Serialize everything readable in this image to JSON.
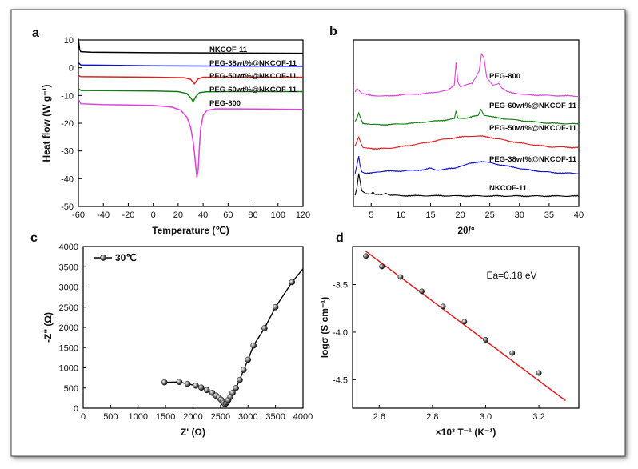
{
  "chart_data": [
    {
      "panel": "a",
      "type": "line",
      "xlabel": "Temperature (℃)",
      "ylabel": "Heat flow (W g⁻¹)",
      "xlim": [
        -60,
        120
      ],
      "ylim": [
        -50,
        10
      ],
      "xticks": [
        -60,
        -40,
        -20,
        0,
        20,
        40,
        60,
        80,
        100,
        120
      ],
      "yticks": [
        10,
        0,
        -10,
        -20,
        -30,
        -40,
        -50
      ],
      "series": [
        {
          "name": "NKCOF-11",
          "color": "#000000",
          "points": [
            [
              -60,
              10.5
            ],
            [
              -59,
              6.5
            ],
            [
              -58,
              5.8
            ],
            [
              -50,
              5.6
            ],
            [
              0,
              5.4
            ],
            [
              60,
              5.3
            ],
            [
              120,
              5.2
            ]
          ]
        },
        {
          "name": "PEG-38wt%@NKCOF-11",
          "color": "#1010d0",
          "points": [
            [
              -60,
              1.8
            ],
            [
              -58,
              1.0
            ],
            [
              0,
              0.7
            ],
            [
              60,
              0.6
            ],
            [
              120,
              0.5
            ]
          ]
        },
        {
          "name": "PEG-50wt%@NKCOF-11",
          "color": "#e02020",
          "points": [
            [
              -60,
              -2.8
            ],
            [
              -58,
              -3.2
            ],
            [
              0,
              -3.4
            ],
            [
              25,
              -3.6
            ],
            [
              30,
              -4.2
            ],
            [
              33,
              -5.8
            ],
            [
              36,
              -4.0
            ],
            [
              40,
              -3.4
            ],
            [
              60,
              -3.4
            ],
            [
              120,
              -3.4
            ]
          ]
        },
        {
          "name": "PEG-60wt%@NKCOF-11",
          "color": "#108010",
          "points": [
            [
              -60,
              -7.5
            ],
            [
              -58,
              -8.2
            ],
            [
              0,
              -8.4
            ],
            [
              20,
              -8.6
            ],
            [
              27,
              -9.3
            ],
            [
              30,
              -10.8
            ],
            [
              32,
              -12.2
            ],
            [
              34,
              -10.5
            ],
            [
              37,
              -9.0
            ],
            [
              42,
              -8.7
            ],
            [
              60,
              -8.6
            ],
            [
              120,
              -8.6
            ]
          ]
        },
        {
          "name": "PEG-800",
          "color": "#e040e0",
          "points": [
            [
              -60,
              -11.5
            ],
            [
              -58,
              -13.0
            ],
            [
              -40,
              -13.3
            ],
            [
              0,
              -13.6
            ],
            [
              15,
              -14.2
            ],
            [
              22,
              -15.3
            ],
            [
              27,
              -17.8
            ],
            [
              30,
              -21.5
            ],
            [
              32,
              -26.5
            ],
            [
              33,
              -30.5
            ],
            [
              34,
              -35.0
            ],
            [
              35,
              -39.5
            ],
            [
              36,
              -37.0
            ],
            [
              37,
              -29.0
            ],
            [
              38,
              -22.0
            ],
            [
              40,
              -17.2
            ],
            [
              43,
              -15.4
            ],
            [
              50,
              -14.8
            ],
            [
              80,
              -14.9
            ],
            [
              120,
              -15.0
            ]
          ]
        }
      ]
    },
    {
      "panel": "b",
      "type": "line",
      "xlabel": "2θ/°",
      "ylabel": "",
      "xlim": [
        2,
        40
      ],
      "xticks": [
        5,
        10,
        15,
        20,
        25,
        30,
        35,
        40
      ],
      "series": [
        {
          "name": "NKCOF-11",
          "color": "#000000",
          "offset": 0,
          "points": [
            [
              2.3,
              0.2
            ],
            [
              2.6,
              2.5
            ],
            [
              2.9,
              6.5
            ],
            [
              3.1,
              4.5
            ],
            [
              3.4,
              1.5
            ],
            [
              4,
              0.8
            ],
            [
              5,
              0.6
            ],
            [
              5.3,
              1.2
            ],
            [
              5.6,
              0.5
            ],
            [
              6,
              0.4
            ],
            [
              7,
              0.5
            ],
            [
              7.5,
              0.8
            ],
            [
              8,
              0.3
            ],
            [
              10,
              0.1
            ],
            [
              15,
              0.1
            ],
            [
              20,
              0.05
            ],
            [
              30,
              0
            ],
            [
              40,
              0
            ]
          ]
        },
        {
          "name": "PEG-38wt%@NKCOF-11",
          "color": "#1010d0",
          "offset": 6,
          "points": [
            [
              2.3,
              0.5
            ],
            [
              2.6,
              3.0
            ],
            [
              2.9,
              5.5
            ],
            [
              3.1,
              3.0
            ],
            [
              3.4,
              1.0
            ],
            [
              4,
              0.5
            ],
            [
              5,
              0.6
            ],
            [
              6,
              1.0
            ],
            [
              8,
              1.2
            ],
            [
              10,
              1.2
            ],
            [
              14,
              1.6
            ],
            [
              15,
              2.0
            ],
            [
              16,
              1.5
            ],
            [
              19,
              2.0
            ],
            [
              20,
              2.6
            ],
            [
              22,
              3.5
            ],
            [
              23.5,
              4.0
            ],
            [
              25,
              3.6
            ],
            [
              28,
              2.6
            ],
            [
              32,
              1.4
            ],
            [
              36,
              0.7
            ],
            [
              40,
              0.5
            ]
          ]
        },
        {
          "name": "PEG-50wt%@NKCOF-11",
          "color": "#e02020",
          "offset": 13,
          "points": [
            [
              2.3,
              1.5
            ],
            [
              2.6,
              2.8
            ],
            [
              2.9,
              4.0
            ],
            [
              3.2,
              2.5
            ],
            [
              3.6,
              1.0
            ],
            [
              5,
              0.8
            ],
            [
              6,
              0.6
            ],
            [
              8,
              0.8
            ],
            [
              10,
              1.2
            ],
            [
              14,
              2.3
            ],
            [
              17,
              3.3
            ],
            [
              20,
              4.0
            ],
            [
              22,
              4.3
            ],
            [
              24,
              4.2
            ],
            [
              26,
              3.6
            ],
            [
              30,
              2.3
            ],
            [
              35,
              1.2
            ],
            [
              40,
              1.0
            ]
          ]
        },
        {
          "name": "PEG-60wt%@NKCOF-11",
          "color": "#108010",
          "offset": 20,
          "points": [
            [
              2.3,
              1.5
            ],
            [
              2.6,
              2.5
            ],
            [
              2.9,
              4.0
            ],
            [
              3.2,
              2.5
            ],
            [
              3.6,
              1.0
            ],
            [
              5,
              0.6
            ],
            [
              8,
              0.6
            ],
            [
              12,
              1.0
            ],
            [
              15,
              1.5
            ],
            [
              17,
              1.8
            ],
            [
              19,
              2.3
            ],
            [
              19.3,
              4.5
            ],
            [
              19.6,
              2.5
            ],
            [
              21,
              2.5
            ],
            [
              23,
              3.2
            ],
            [
              23.5,
              5.0
            ],
            [
              24,
              3.4
            ],
            [
              26,
              2.6
            ],
            [
              30,
              1.8
            ],
            [
              35,
              1.0
            ],
            [
              40,
              0.8
            ]
          ]
        },
        {
          "name": "PEG-800",
          "color": "#e040e0",
          "offset": 28,
          "points": [
            [
              2.3,
              2.0
            ],
            [
              2.6,
              3.0
            ],
            [
              2.9,
              2.5
            ],
            [
              3.5,
              1.5
            ],
            [
              5,
              1.0
            ],
            [
              8,
              0.8
            ],
            [
              10,
              1.2
            ],
            [
              14,
              1.5
            ],
            [
              18,
              2.5
            ],
            [
              19.0,
              4.0
            ],
            [
              19.3,
              10.5
            ],
            [
              19.6,
              5.0
            ],
            [
              20,
              3.5
            ],
            [
              22,
              4.5
            ],
            [
              23.2,
              8.0
            ],
            [
              23.6,
              13.0
            ],
            [
              24.0,
              12.0
            ],
            [
              24.5,
              6.0
            ],
            [
              25.5,
              4.0
            ],
            [
              26.5,
              4.5
            ],
            [
              27,
              3.2
            ],
            [
              28,
              2.0
            ],
            [
              31,
              1.2
            ],
            [
              35,
              1.0
            ],
            [
              40,
              0.8
            ]
          ]
        }
      ]
    },
    {
      "panel": "c",
      "type": "line",
      "xlabel": "Z' (Ω)",
      "ylabel": "-Z'' (Ω)",
      "xlim": [
        0,
        4000
      ],
      "ylim": [
        0,
        4000
      ],
      "xticks": [
        0,
        500,
        1000,
        1500,
        2000,
        2500,
        3000,
        3500,
        4000
      ],
      "yticks": [
        0,
        500,
        1000,
        1500,
        2000,
        2500,
        3000,
        3500,
        4000
      ],
      "legend": "30℃",
      "series": [
        {
          "name": "30℃",
          "color": "#000000",
          "points": [
            [
              1480,
              640
            ],
            [
              1750,
              650
            ],
            [
              1900,
              600
            ],
            [
              2050,
              560
            ],
            [
              2150,
              510
            ],
            [
              2250,
              450
            ],
            [
              2350,
              380
            ],
            [
              2420,
              310
            ],
            [
              2470,
              260
            ],
            [
              2510,
              210
            ],
            [
              2540,
              160
            ],
            [
              2560,
              130
            ],
            [
              2580,
              100
            ],
            [
              2600,
              120
            ],
            [
              2620,
              150
            ],
            [
              2640,
              200
            ],
            [
              2680,
              280
            ],
            [
              2720,
              380
            ],
            [
              2780,
              500
            ],
            [
              2850,
              700
            ],
            [
              2920,
              950
            ],
            [
              3000,
              1200
            ],
            [
              3100,
              1550
            ],
            [
              3300,
              1980
            ],
            [
              3500,
              2500
            ],
            [
              3800,
              3120
            ],
            [
              4000,
              3450
            ]
          ],
          "markers": [
            [
              1480,
              640
            ],
            [
              1750,
              650
            ],
            [
              1900,
              600
            ],
            [
              2050,
              560
            ],
            [
              2150,
              510
            ],
            [
              2250,
              450
            ],
            [
              2350,
              380
            ],
            [
              2420,
              310
            ],
            [
              2470,
              260
            ],
            [
              2510,
              210
            ],
            [
              2540,
              160
            ],
            [
              2560,
              130
            ],
            [
              2580,
              100
            ],
            [
              2600,
              120
            ],
            [
              2620,
              150
            ],
            [
              2640,
              200
            ],
            [
              2680,
              280
            ],
            [
              2720,
              380
            ],
            [
              2780,
              500
            ],
            [
              2850,
              700
            ],
            [
              2920,
              950
            ],
            [
              3000,
              1200
            ],
            [
              3100,
              1550
            ],
            [
              3300,
              1980
            ],
            [
              3500,
              2500
            ],
            [
              3800,
              3120
            ]
          ]
        }
      ]
    },
    {
      "panel": "d",
      "type": "scatter",
      "xlabel": "×10³ T⁻¹ (K⁻¹)",
      "ylabel": "logσ (S cm⁻¹)",
      "xlim": [
        2.5,
        3.35
      ],
      "ylim": [
        -4.8,
        -3.1
      ],
      "xticks": [
        2.6,
        2.8,
        3.0,
        3.2
      ],
      "yticks": [
        -3.5,
        -4.0,
        -4.5
      ],
      "annotation": "Ea=0.18 eV",
      "points": [
        [
          2.55,
          -3.2
        ],
        [
          2.61,
          -3.31
        ],
        [
          2.68,
          -3.42
        ],
        [
          2.76,
          -3.57
        ],
        [
          2.84,
          -3.73
        ],
        [
          2.92,
          -3.89
        ],
        [
          3.0,
          -4.08
        ],
        [
          3.1,
          -4.22
        ],
        [
          3.2,
          -4.43
        ]
      ],
      "fit": {
        "color": "#e02020",
        "points": [
          [
            2.55,
            -3.15
          ],
          [
            3.3,
            -4.72
          ]
        ]
      }
    }
  ],
  "panels": {
    "a": {
      "letter": "a"
    },
    "b": {
      "letter": "b"
    },
    "c": {
      "letter": "c"
    },
    "d": {
      "letter": "d"
    }
  }
}
